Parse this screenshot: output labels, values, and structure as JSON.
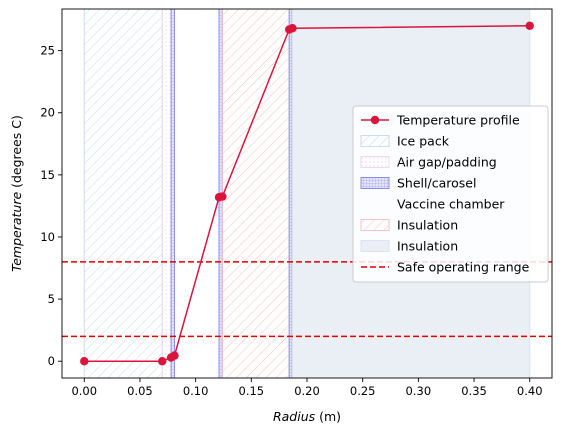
{
  "chart_data": {
    "type": "line",
    "xlabel": "Radius",
    "xunit": " (m)",
    "ylabel": "Temperature",
    "yunit": " (degrees C)",
    "xlim": [
      -0.02,
      0.42
    ],
    "ylim": [
      -1.35,
      28.35
    ],
    "xticks": [
      0.0,
      0.05,
      0.1,
      0.15,
      0.2,
      0.25,
      0.3,
      0.35,
      0.4
    ],
    "xtick_labels": [
      "0.00",
      "0.05",
      "0.10",
      "0.15",
      "0.20",
      "0.25",
      "0.30",
      "0.35",
      "0.40"
    ],
    "yticks": [
      0,
      5,
      10,
      15,
      20,
      25
    ],
    "ytick_labels": [
      "0",
      "5",
      "10",
      "15",
      "20",
      "25"
    ],
    "grid": false,
    "legend_position": "center-right",
    "series": [
      {
        "name": "Temperature profile",
        "color": "#dc143c",
        "marker": "circle",
        "x": [
          0.0,
          0.07,
          0.078,
          0.081,
          0.121,
          0.124,
          0.184,
          0.187,
          0.4
        ],
        "y": [
          0.0,
          0.0,
          0.3,
          0.45,
          13.2,
          13.25,
          26.7,
          26.8,
          27.0
        ]
      }
    ],
    "regions": [
      {
        "name": "Ice pack",
        "x0": 0.0,
        "x1": 0.07,
        "fill": "none",
        "edge": "#c9dcf0",
        "hatch": "diagonal"
      },
      {
        "name": "Air gap/padding",
        "x0": 0.07,
        "x1": 0.078,
        "fill": "none",
        "edge": "#f2d6ec",
        "hatch": "dots"
      },
      {
        "name": "Shell/carosel",
        "x0": 0.078,
        "x1": 0.081,
        "fill": "#e4e4f8",
        "edge": "#8c8cf0",
        "hatch": "grid"
      },
      {
        "name": "Vaccine chamber",
        "x0": 0.081,
        "x1": 0.121,
        "fill": "none",
        "edge": "none",
        "hatch": "none"
      },
      {
        "name": "Insulation",
        "x0": 0.121,
        "x1": 0.124,
        "fill": "#e4e4f8",
        "edge": "#8c8cf0",
        "hatch": "grid"
      },
      {
        "name": "Insulation",
        "x0": 0.124,
        "x1": 0.184,
        "fill": "none",
        "edge": "#f6c4c4",
        "hatch": "diagonal-red"
      },
      {
        "name": "",
        "x0": 0.184,
        "x1": 0.187,
        "fill": "#e4e4f8",
        "edge": "#8c8cf0",
        "hatch": "grid"
      },
      {
        "name": "Insulation",
        "x0": 0.187,
        "x1": 0.4,
        "fill": "#eaeef5",
        "edge": "#dde3ee",
        "hatch": "none"
      }
    ],
    "hlines": [
      {
        "name": "Safe operating range",
        "y": 2,
        "color": "#e00000"
      },
      {
        "name": "Safe operating range",
        "y": 8,
        "color": "#e00000"
      }
    ],
    "legend": [
      {
        "label": "Temperature profile",
        "kind": "line-marker",
        "color": "#dc143c"
      },
      {
        "label": "Ice pack",
        "kind": "patch",
        "hatch": "diagonal",
        "edge": "#c9dcf0",
        "fill": "none"
      },
      {
        "label": "Air gap/padding",
        "kind": "patch",
        "hatch": "dots",
        "edge": "#f2d6ec",
        "fill": "none"
      },
      {
        "label": "Shell/carosel",
        "kind": "patch",
        "hatch": "grid",
        "edge": "#8c8cf0",
        "fill": "#e4e4f8"
      },
      {
        "label": "Vaccine chamber",
        "kind": "patch",
        "hatch": "none",
        "edge": "none",
        "fill": "none"
      },
      {
        "label": "Insulation",
        "kind": "patch",
        "hatch": "diagonal-red",
        "edge": "#f6c4c4",
        "fill": "none"
      },
      {
        "label": "Insulation",
        "kind": "patch",
        "hatch": "none",
        "edge": "#dde3ee",
        "fill": "#eaeef5"
      },
      {
        "label": "Safe operating range",
        "kind": "dashed-line",
        "color": "#e00000"
      }
    ]
  }
}
